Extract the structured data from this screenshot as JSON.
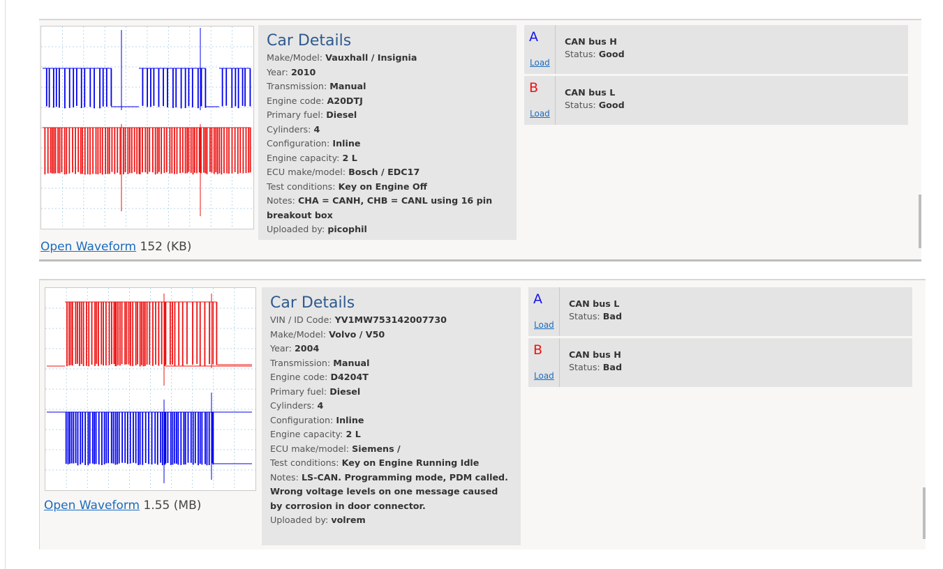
{
  "records": [
    {
      "thumbnail": {
        "top_color": "#0000ee",
        "bottom_color": "#ee1111"
      },
      "open_label": "Open Waveform",
      "size": "152 (KB)",
      "details_title": "Car Details",
      "fields": [
        {
          "label": "Make/Model:",
          "value": "Vauxhall / Insignia"
        },
        {
          "label": "Year:",
          "value": "2010"
        },
        {
          "label": "Transmission:",
          "value": "Manual"
        },
        {
          "label": "Engine code:",
          "value": "A20DTJ"
        },
        {
          "label": "Primary fuel:",
          "value": "Diesel"
        },
        {
          "label": "Cylinders:",
          "value": "4"
        },
        {
          "label": "Configuration:",
          "value": "Inline"
        },
        {
          "label": "Engine capacity:",
          "value": "2 L"
        },
        {
          "label": "ECU make/model:",
          "value": "Bosch / EDC17"
        },
        {
          "label": "Test conditions:",
          "value": "Key on Engine Off"
        },
        {
          "label": "Notes:",
          "value": "CHA = CANH, CHB = CANL using 16 pin breakout box"
        },
        {
          "label": "Uploaded by:",
          "value": "picophil"
        }
      ],
      "channels": [
        {
          "letter": "A",
          "color": "#1212ee",
          "load": "Load",
          "name": "CAN bus H",
          "status_label": "Status:",
          "status": "Good"
        },
        {
          "letter": "B",
          "color": "#ee1111",
          "load": "Load",
          "name": "CAN bus L",
          "status_label": "Status:",
          "status": "Good"
        }
      ]
    },
    {
      "thumbnail": {
        "top_color": "#ee1111",
        "bottom_color": "#0000ee"
      },
      "open_label": "Open Waveform",
      "size": "1.55 (MB)",
      "details_title": "Car Details",
      "fields": [
        {
          "label": "VIN / ID Code:",
          "value": "YV1MW753142007730"
        },
        {
          "label": "Make/Model:",
          "value": "Volvo / V50"
        },
        {
          "label": "Year:",
          "value": "2004"
        },
        {
          "label": "Transmission:",
          "value": "Manual"
        },
        {
          "label": "Engine code:",
          "value": "D4204T"
        },
        {
          "label": "Primary fuel:",
          "value": "Diesel"
        },
        {
          "label": "Cylinders:",
          "value": "4"
        },
        {
          "label": "Configuration:",
          "value": "Inline"
        },
        {
          "label": "Engine capacity:",
          "value": "2 L"
        },
        {
          "label": "ECU make/model:",
          "value": "Siemens /"
        },
        {
          "label": "Test conditions:",
          "value": "Key on Engine Running Idle"
        },
        {
          "label": "Notes:",
          "value": "LS-CAN. Programming mode, PDM called. Wrong voltage levels on one message caused by corrosion in door connector."
        },
        {
          "label": "Uploaded by:",
          "value": "volrem"
        }
      ],
      "channels": [
        {
          "letter": "A",
          "color": "#1212ee",
          "load": "Load",
          "name": "CAN bus L",
          "status_label": "Status:",
          "status": "Bad"
        },
        {
          "letter": "B",
          "color": "#ee1111",
          "load": "Load",
          "name": "CAN bus H",
          "status_label": "Status:",
          "status": "Bad"
        }
      ]
    }
  ]
}
